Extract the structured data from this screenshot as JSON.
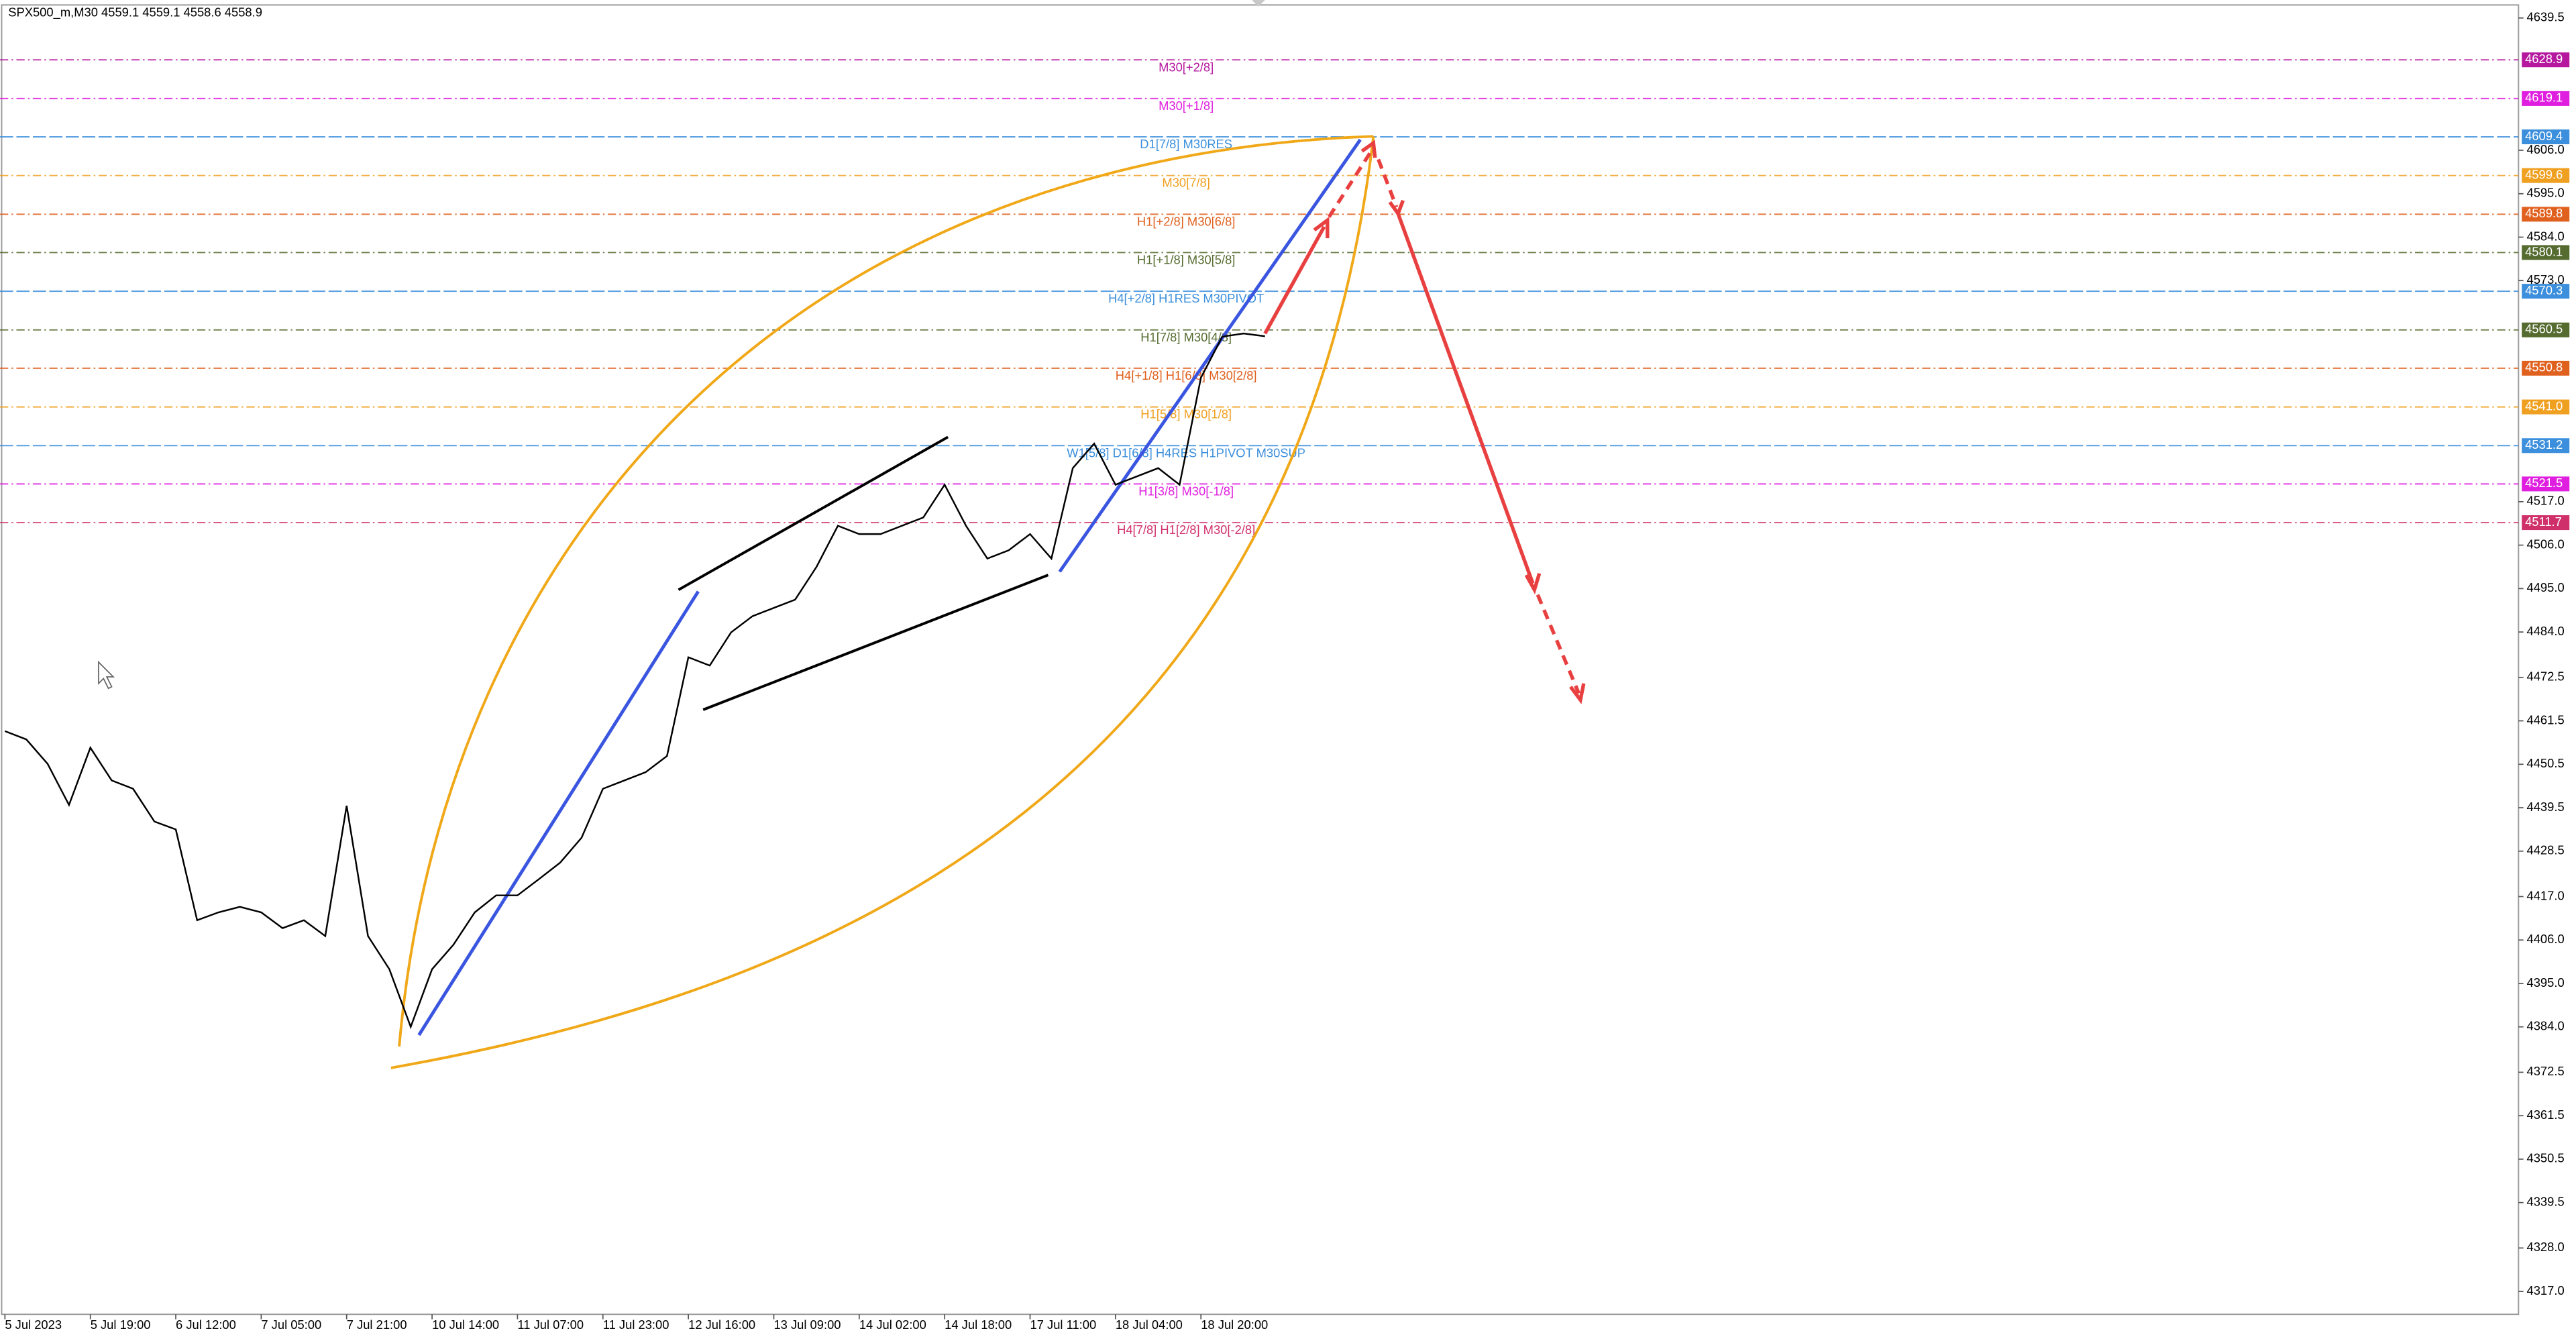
{
  "chart_data": {
    "type": "line",
    "title": "SPX500_m,M30  4559.1 4559.1 4558.6 4558.9",
    "color": "#000000",
    "categories": [
      "5 Jul 2023",
      null,
      null,
      null,
      "5 Jul 19:00",
      null,
      null,
      null,
      "6 Jul 12:00",
      null,
      null,
      null,
      "7 Jul 05:00",
      null,
      null,
      null,
      "7 Jul 21:00",
      null,
      null,
      null,
      "10 Jul 14:00",
      null,
      null,
      null,
      "11 Jul 07:00",
      null,
      null,
      null,
      "11 Jul 23:00",
      null,
      null,
      null,
      "12 Jul 16:00",
      null,
      null,
      null,
      "13 Jul 09:00",
      null,
      null,
      null,
      "14 Jul 02:00",
      null,
      null,
      null,
      "14 Jul 18:00",
      null,
      null,
      null,
      "17 Jul 11:00",
      null,
      null,
      null,
      "18 Jul 04:00",
      null,
      null,
      null,
      "18 Jul 20:00",
      null,
      null,
      null
    ],
    "values": [
      4458.9,
      4456.8,
      4450.6,
      4440.2,
      4454.7,
      4446.4,
      4444.3,
      4436,
      4434,
      4411,
      4413,
      4414.4,
      4413,
      4409,
      4411,
      4407,
      4440,
      4407,
      4398.6,
      4384,
      4398.6,
      4404.8,
      4413,
      4417.3,
      4417.3,
      4421.4,
      4425.6,
      4431.9,
      4444.3,
      4446.4,
      4448.5,
      4452.6,
      4477.6,
      4475.5,
      4483.9,
      4488,
      4490.1,
      4492.2,
      4500.5,
      4510.9,
      4508.8,
      4508.8,
      4510.9,
      4513,
      4521.3,
      4510.9,
      4502.6,
      4504.7,
      4508.8,
      4502.6,
      4525.5,
      4531.7,
      4521.3,
      4523.4,
      4525.5,
      4521.3,
      4548.4,
      4558.8,
      4559.6,
      4558.9
    ],
    "ylim": [
      4311.2,
      4642.8
    ],
    "yticks": [
      4639.5,
      {
        "value": 4606,
        "label": "4606.0"
      },
      {
        "value": 4595,
        "label": "4595.0"
      },
      {
        "value": 4584,
        "label": "4584.0"
      },
      {
        "value": 4573,
        "label": "4573.0"
      },
      {
        "value": 4517,
        "label": "4517.0"
      },
      {
        "value": 4506,
        "label": "4506.0"
      },
      {
        "value": 4495,
        "label": "4495.0"
      },
      {
        "value": 4484,
        "label": "4484.0"
      },
      4472.5,
      4461.5,
      4450.5,
      4439.5,
      4428.5,
      {
        "value": 4417,
        "label": "4417.0"
      },
      {
        "value": 4406,
        "label": "4406.0"
      },
      {
        "value": 4395,
        "label": "4395.0"
      },
      {
        "value": 4384,
        "label": "4384.0"
      },
      4372.5,
      4361.5,
      4350.5,
      4339.5,
      {
        "value": 4328,
        "label": "4328.0"
      },
      {
        "value": 4317,
        "label": "4317.0"
      }
    ],
    "grid": false,
    "levels": [
      {
        "name": "M30[+2/8]",
        "value": 4628.9,
        "color": "#b5179e"
      },
      {
        "name": "M30[+1/8]",
        "value": 4619.1,
        "color": "#e01ee0"
      },
      {
        "name": "D1[7/8] M30RES",
        "value": 4609.4,
        "color": "#3b8fdc"
      },
      {
        "name": "M30[7/8]",
        "value": 4599.6,
        "color": "#f0a020"
      },
      {
        "name": "H1[+2/8] M30[6/8]",
        "value": 4589.8,
        "color": "#e0601e"
      },
      {
        "name": "H1[+1/8] M30[5/8]",
        "value": 4580.1,
        "color": "#556b2f"
      },
      {
        "name": "H4[+2/8] H1RES M30PIVOT",
        "value": 4570.3,
        "color": "#3b8fdc"
      },
      {
        "name": "H1[7/8] M30[4/8]",
        "value": 4560.5,
        "color": "#556b2f"
      },
      {
        "name": "H4[+1/8] H1[6/8] M30[2/8]",
        "value": 4550.8,
        "color": "#e0601e"
      },
      {
        "name": "H1[5/8] M30[1/8]",
        "value": 4541,
        "value_label": "4541.0",
        "color": "#f0a020"
      },
      {
        "name": "W1[5/8] D1[6/8] H4RES H1PIVOT M30SUP",
        "value": 4531.2,
        "color": "#3b8fdc"
      },
      {
        "name": "H1[3/8] M30[-1/8]",
        "value": 4521.5,
        "color": "#e01ee0"
      },
      {
        "name": "H4[7/8] H1[2/8] M30[-2/8]",
        "value": 4511.7,
        "color": "#d0306a"
      }
    ]
  }
}
